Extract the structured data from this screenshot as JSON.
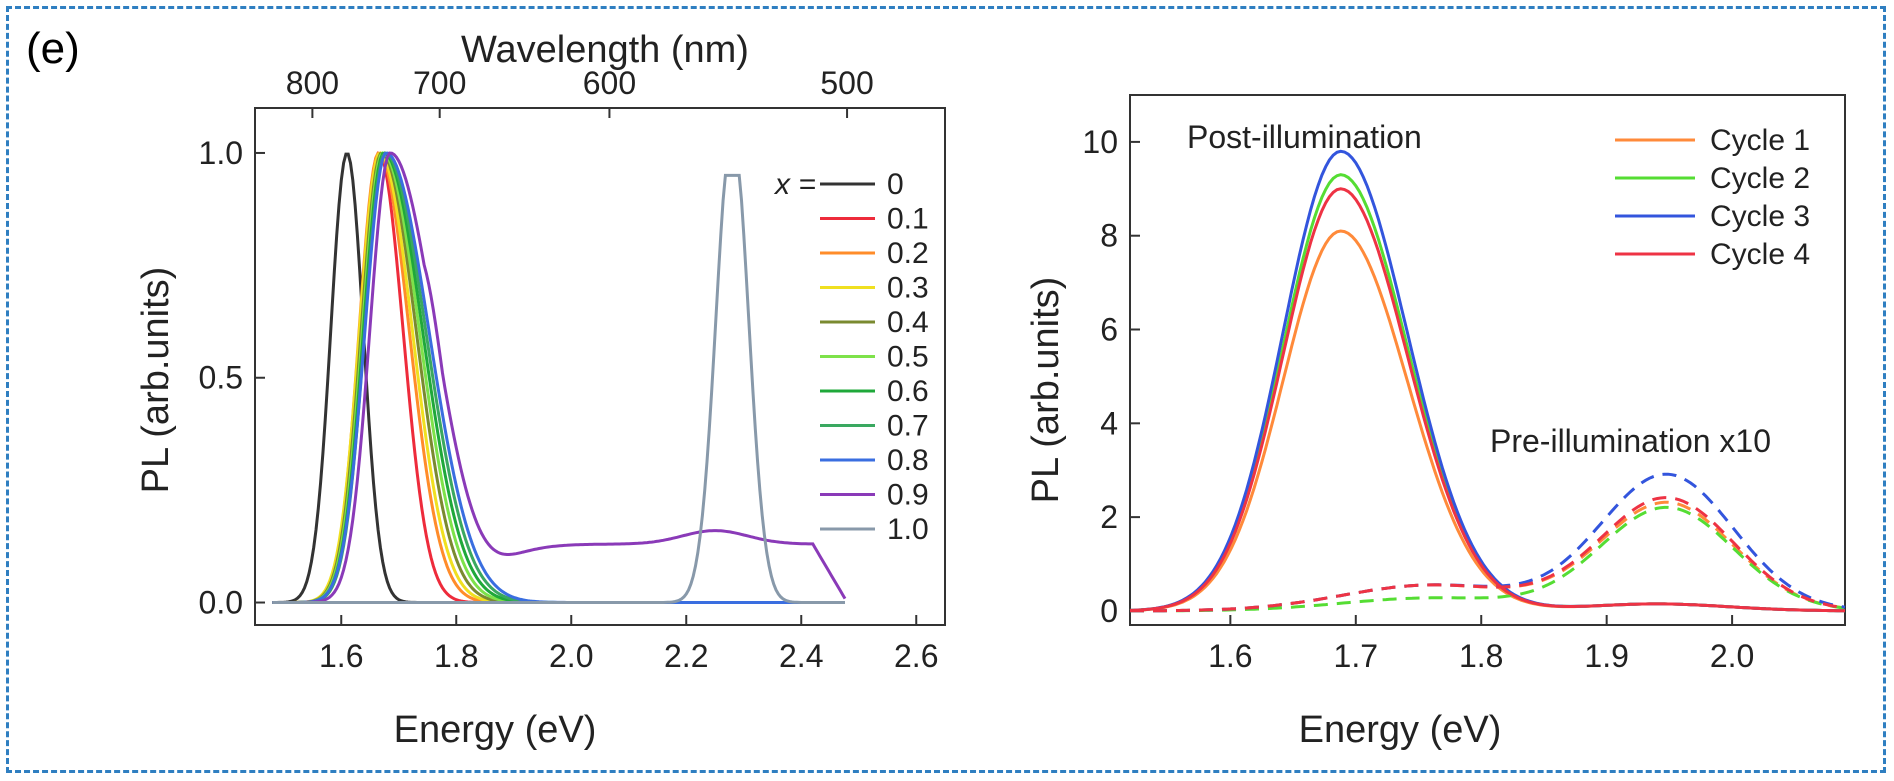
{
  "panel_label": "(e)",
  "chart_data": [
    {
      "type": "line",
      "xlabel": "Energy (eV)",
      "ylabel": "PL (arb.units)",
      "top_axis_label": "Wavelength (nm)",
      "top_ticks": [
        800,
        700,
        600,
        500
      ],
      "xlim": [
        1.45,
        2.65
      ],
      "ylim": [
        -0.05,
        1.1
      ],
      "xticks": [
        "1.6",
        "1.8",
        "2.0",
        "2.2",
        "2.4",
        "2.6"
      ],
      "yticks": [
        "0.0",
        "0.5",
        "1.0"
      ],
      "legend_title": "x =",
      "legend_position": "top-right",
      "series": [
        {
          "name": "0",
          "color": "#333333",
          "peak": 1.61,
          "w_lo": 0.04,
          "w_hi": 0.04,
          "amp": 1.0
        },
        {
          "name": "0.1",
          "color": "#ee2b3b",
          "peak": 1.665,
          "w_lo": 0.045,
          "w_hi": 0.06,
          "amp": 1.0
        },
        {
          "name": "0.2",
          "color": "#ff8c2a",
          "peak": 1.665,
          "w_lo": 0.048,
          "w_hi": 0.075,
          "amp": 1.0
        },
        {
          "name": "0.3",
          "color": "#f0e020",
          "peak": 1.667,
          "w_lo": 0.05,
          "w_hi": 0.08,
          "amp": 1.0
        },
        {
          "name": "0.4",
          "color": "#7a8a30",
          "peak": 1.67,
          "w_lo": 0.05,
          "w_hi": 0.085,
          "amp": 1.0
        },
        {
          "name": "0.5",
          "color": "#7ee24a",
          "peak": 1.672,
          "w_lo": 0.05,
          "w_hi": 0.09,
          "amp": 1.0
        },
        {
          "name": "0.6",
          "color": "#1fa83a",
          "peak": 1.674,
          "w_lo": 0.05,
          "w_hi": 0.095,
          "amp": 1.0
        },
        {
          "name": "0.7",
          "color": "#3aa860",
          "peak": 1.676,
          "w_lo": 0.05,
          "w_hi": 0.1,
          "amp": 1.0
        },
        {
          "name": "0.8",
          "color": "#3a6ee0",
          "peak": 1.678,
          "w_lo": 0.052,
          "w_hi": 0.105,
          "amp": 1.0
        },
        {
          "name": "0.9",
          "color": "#8a3ab8",
          "peak": 1.685,
          "w_lo": 0.05,
          "w_hi": 0.11,
          "amp": 1.0
        },
        {
          "name": "1.0",
          "color": "#8899aa",
          "peak": 2.28,
          "w_lo": 0.04,
          "w_hi": 0.04,
          "amp": 1.0
        }
      ]
    },
    {
      "type": "line",
      "xlabel": "Energy (eV)",
      "ylabel": "PL (arb.units)",
      "xlim": [
        1.52,
        2.09
      ],
      "ylim": [
        -0.3,
        11
      ],
      "xticks": [
        "1.6",
        "1.7",
        "1.8",
        "1.9",
        "2.0"
      ],
      "yticks": [
        "0",
        "2",
        "4",
        "6",
        "8",
        "10"
      ],
      "annotations": [
        "Post-illumination",
        "Pre-illumination x10"
      ],
      "legend_position": "top-right",
      "series": [
        {
          "name": "Cycle 1",
          "color": "#ff8a3a",
          "post_amp": 8.1,
          "pre_amp": 2.3
        },
        {
          "name": "Cycle 2",
          "color": "#55dd33",
          "post_amp": 9.3,
          "pre_amp": 2.2
        },
        {
          "name": "Cycle 3",
          "color": "#3355dd",
          "post_amp": 9.8,
          "pre_amp": 2.9
        },
        {
          "name": "Cycle 4",
          "color": "#ee3344",
          "post_amp": 9.0,
          "pre_amp": 2.4
        }
      ]
    }
  ]
}
